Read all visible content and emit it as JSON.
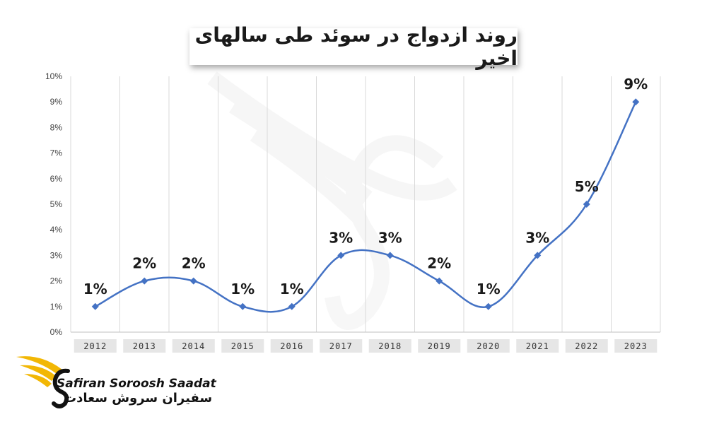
{
  "title": "روند ازدواج در سوئد طی سالهای اخیر",
  "logo": {
    "name_en": "Safiran Soroosh Saadat",
    "name_fa": "سفیران سروش سعادت"
  },
  "colors": {
    "line": "#4472C4",
    "grid": "#d9d9d9",
    "logo_gold": "#F2B705"
  },
  "chart_data": {
    "type": "line",
    "categories": [
      "2012",
      "2013",
      "2014",
      "2015",
      "2016",
      "2017",
      "2018",
      "2019",
      "2020",
      "2021",
      "2022",
      "2023"
    ],
    "values": [
      1,
      2,
      2,
      1,
      1,
      3,
      3,
      2,
      1,
      3,
      5,
      9
    ],
    "data_labels": [
      "1%",
      "2%",
      "2%",
      "1%",
      "1%",
      "3%",
      "3%",
      "2%",
      "1%",
      "3%",
      "5%",
      "9%"
    ],
    "y_ticks": [
      "0%",
      "1%",
      "2%",
      "3%",
      "4%",
      "5%",
      "6%",
      "7%",
      "8%",
      "9%",
      "10%"
    ],
    "ylim": [
      0,
      10
    ],
    "grid": "vertical",
    "xlabel": "",
    "ylabel": ""
  }
}
